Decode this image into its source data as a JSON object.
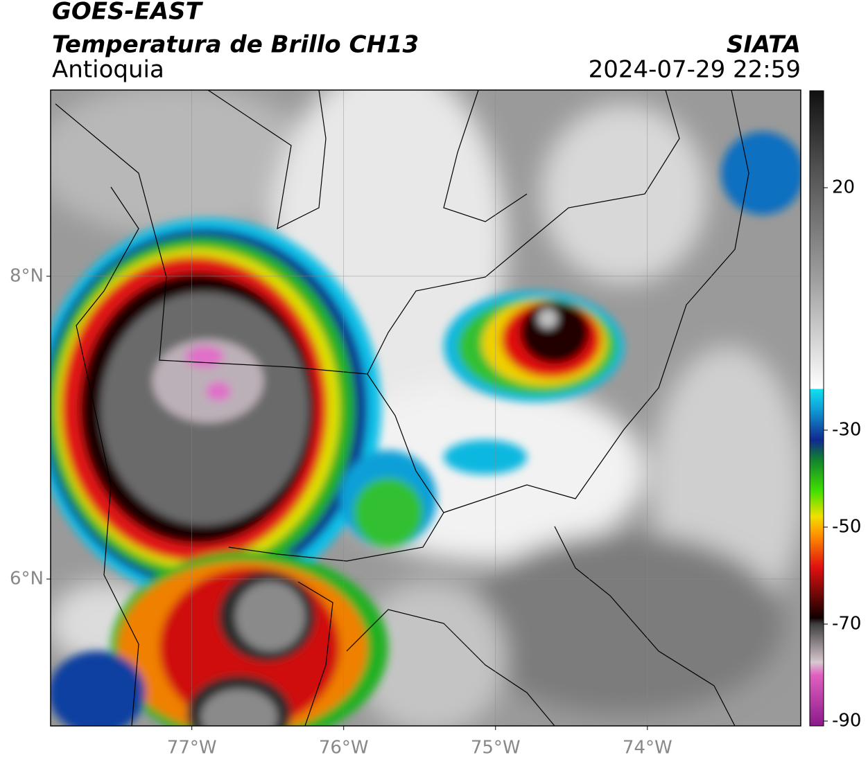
{
  "header": {
    "title": "GOES-EAST",
    "subtitle": "Temperatura de Brillo CH13",
    "region": "Antioquia",
    "source": "SIATA",
    "timestamp": "2024-07-29 22:59"
  },
  "map": {
    "lonlim": [
      -77.93,
      -72.99
    ],
    "latlim": [
      5.03,
      9.23
    ],
    "lat_ticks": [
      {
        "value": 8,
        "label": "8°N"
      },
      {
        "value": 6,
        "label": "6°N"
      }
    ],
    "lon_ticks": [
      {
        "value": -77,
        "label": "77°W"
      },
      {
        "value": -76,
        "label": "76°W"
      },
      {
        "value": -75,
        "label": "75°W"
      },
      {
        "value": -74,
        "label": "74°W"
      }
    ],
    "grid": true
  },
  "colorbar": {
    "lim": [
      -91,
      40
    ],
    "ticks": [
      20,
      -30,
      -50,
      -70,
      -90
    ]
  }
}
